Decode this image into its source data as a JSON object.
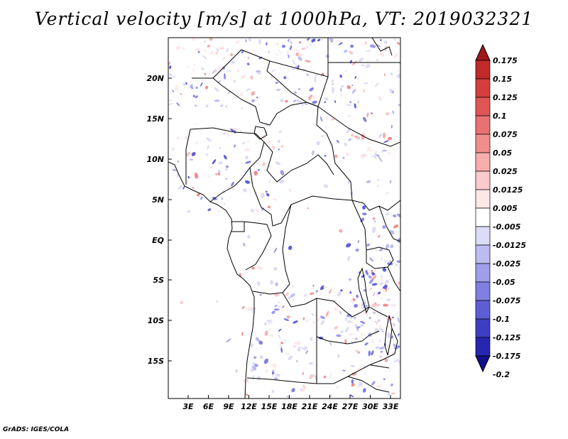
{
  "title": "Vertical velocity [m/s] at 1000hPa, VT: 2019032321",
  "footer": "GrADS: IGES/COLA",
  "lat_labels": [
    "20N",
    "15N",
    "10N",
    "5N",
    "EQ",
    "5S",
    "10S",
    "15S"
  ],
  "lon_labels": [
    "3E",
    "6E",
    "9E",
    "12E",
    "15E",
    "18E",
    "21E",
    "24E",
    "27E",
    "30E",
    "33E"
  ],
  "colorbar": {
    "levels": [
      "0.175",
      "0.15",
      "0.125",
      "0.1",
      "0.075",
      "0.05",
      "0.025",
      "0.0125",
      "0.005",
      "-0.005",
      "-0.0125",
      "-0.025",
      "-0.05",
      "-0.075",
      "-0.1",
      "-0.125",
      "-0.175",
      "-0.2"
    ],
    "colors": [
      "#a01818",
      "#c02a2a",
      "#d43e3e",
      "#e05656",
      "#e87272",
      "#f08e8e",
      "#f6adad",
      "#fbcaca",
      "#fde8e8",
      "#ffffff",
      "#dcdcf6",
      "#bcbcf0",
      "#9e9eea",
      "#8080e2",
      "#5e5ed4",
      "#3e3ec4",
      "#2626b0",
      "#10108c"
    ]
  }
}
